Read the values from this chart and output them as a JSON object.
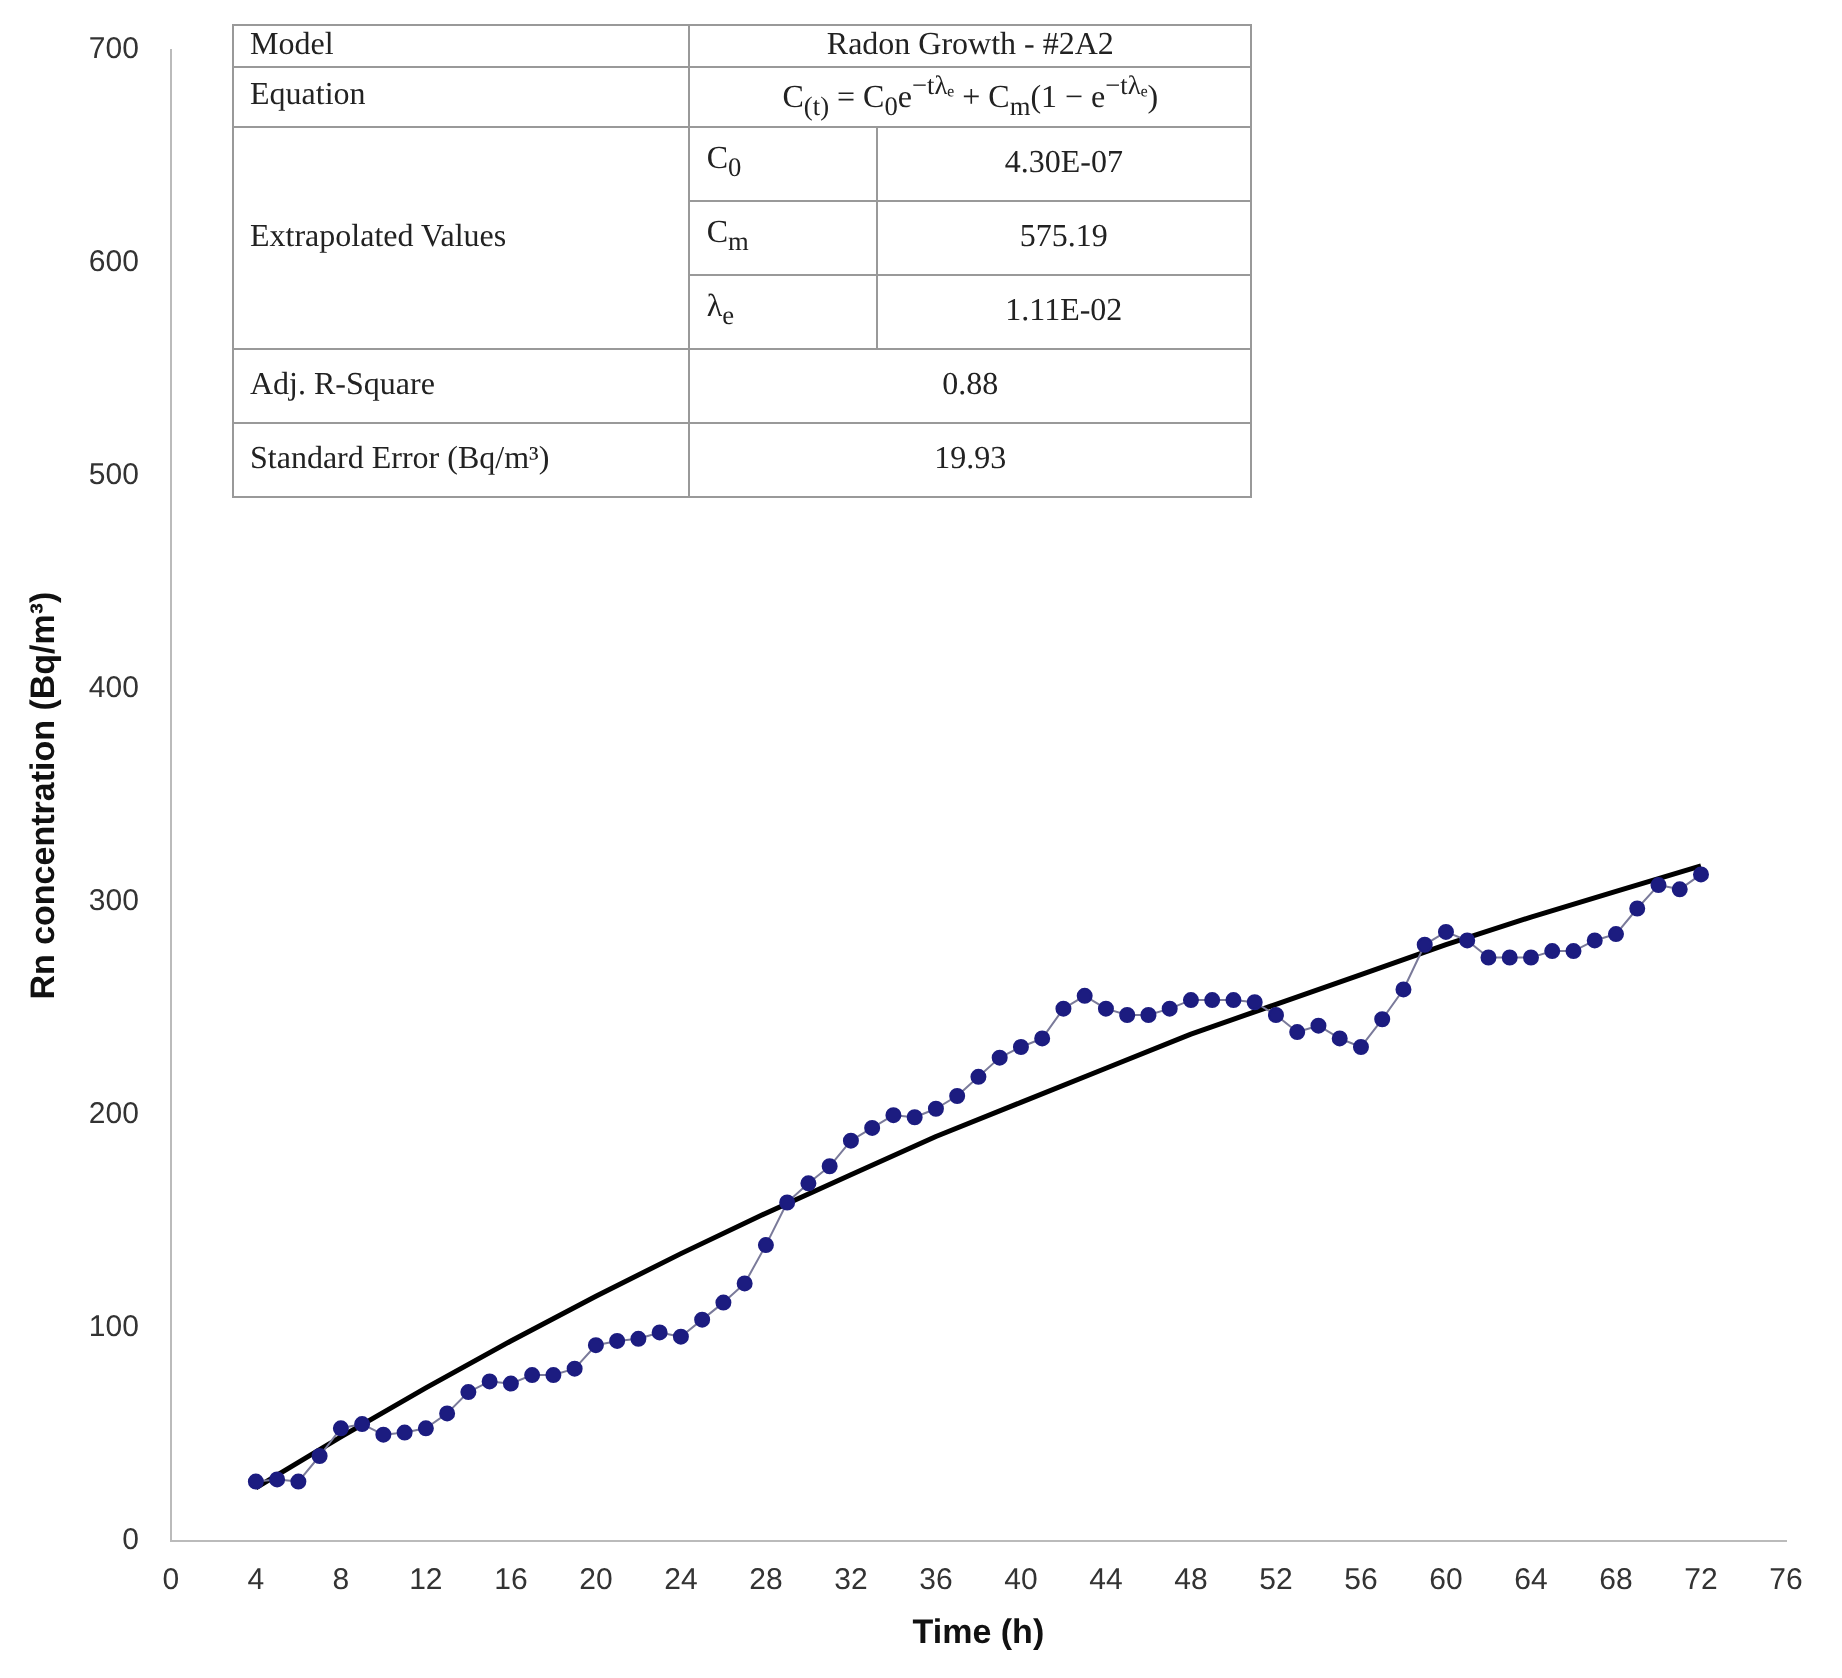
{
  "chart_data": {
    "type": "line",
    "xlabel": "Time (h)",
    "ylabel": "Rn concentration (Bq/m³)",
    "xlim": [
      0,
      76
    ],
    "xticks": [
      0,
      4,
      8,
      12,
      16,
      20,
      24,
      28,
      32,
      36,
      40,
      44,
      48,
      52,
      56,
      60,
      64,
      68,
      72,
      76
    ],
    "ylim": [
      0,
      700
    ],
    "yticks": [
      0,
      100,
      200,
      300,
      400,
      500,
      600,
      700
    ],
    "grid": false,
    "legend": false,
    "x": [
      4,
      5,
      6,
      7,
      8,
      9,
      10,
      11,
      12,
      13,
      14,
      15,
      16,
      17,
      18,
      19,
      20,
      21,
      22,
      23,
      24,
      25,
      26,
      27,
      28,
      29,
      30,
      31,
      32,
      33,
      34,
      35,
      36,
      37,
      38,
      39,
      40,
      41,
      42,
      43,
      44,
      45,
      46,
      47,
      48,
      49,
      50,
      51,
      52,
      53,
      54,
      55,
      56,
      57,
      58,
      59,
      60,
      61,
      62,
      63,
      64,
      65,
      66,
      67,
      68,
      69,
      70,
      71,
      72
    ],
    "series": [
      {
        "type": "line",
        "color": "#1c1c80",
        "marker": "circle",
        "values": [
          28,
          29,
          28,
          40,
          53,
          55,
          50,
          51,
          53,
          60,
          70,
          75,
          74,
          78,
          78,
          81,
          92,
          94,
          95,
          98,
          96,
          104,
          112,
          121,
          139,
          159,
          168,
          176,
          188,
          194,
          200,
          199,
          203,
          209,
          218,
          227,
          232,
          236,
          250,
          256,
          250,
          247,
          247,
          250,
          254,
          254,
          254,
          253,
          247,
          239,
          242,
          236,
          232,
          245,
          259,
          280,
          286,
          282,
          274,
          274,
          274,
          277,
          277,
          282,
          285,
          297,
          308,
          306,
          313
        ]
      },
      {
        "type": "line",
        "color": "#000000",
        "marker": "none",
        "x": [
          4,
          8,
          12,
          16,
          20,
          24,
          28,
          32,
          36,
          40,
          44,
          48,
          52,
          56,
          60,
          64,
          68,
          72
        ],
        "values": [
          25,
          49,
          72,
          94,
          115,
          135,
          154,
          172,
          190,
          206,
          222,
          238,
          252,
          266,
          280,
          293,
          305,
          317
        ]
      }
    ],
    "annotations": [
      "Model",
      "Radon Growth - #2A2",
      "Equation",
      "C$_{(t)}$ =  C$_{0}$e$^{−tλₑ}$ + C$_{m}$(1 − e$^{−tλₑ}$)",
      "Extrapolated Values",
      "C$_{0}$",
      "4.30E-07",
      "C$_{m}$",
      "575.19",
      "λ$_{e}$",
      "1.11E-02",
      "Adj. R-Square",
      "0.88",
      "Standard Error (Bq/m³)",
      "19.93"
    ]
  }
}
